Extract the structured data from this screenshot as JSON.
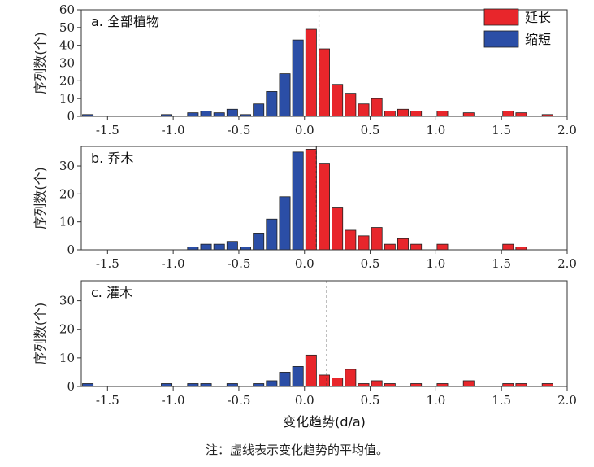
{
  "figure": {
    "note": "注：虚线表示变化趋势的平均值。",
    "xlabel": "变化趋势(d/a)",
    "ylabel": "序列数(个)",
    "legend": [
      {
        "label": "延长",
        "color": "#e8262b"
      },
      {
        "label": "缩短",
        "color": "#2b4ea6"
      }
    ]
  },
  "chart_data": [
    {
      "type": "bar",
      "title": "a. 全部植物",
      "xlabel": "",
      "ylabel": "序列数(个)",
      "xlim": [
        -1.7,
        2.0
      ],
      "ylim": [
        0,
        60
      ],
      "xticks": [
        "-1.5",
        "-1.0",
        "-0.5",
        "0.0",
        "0.5",
        "1.0",
        "1.5",
        "2.0"
      ],
      "yticks": [
        "0",
        "10",
        "20",
        "30",
        "40",
        "50",
        "60"
      ],
      "mean_line_x": 0.11,
      "legend_placement": "top-right",
      "series": [
        {
          "name": "缩短",
          "color": "#2b4ea6",
          "x": [
            -1.65,
            -1.05,
            -0.85,
            -0.75,
            -0.65,
            -0.55,
            -0.45,
            -0.35,
            -0.25,
            -0.15,
            -0.05
          ],
          "values": [
            1,
            1,
            2,
            3,
            2,
            4,
            1,
            7,
            14,
            24,
            43
          ]
        },
        {
          "name": "延长",
          "color": "#e8262b",
          "x": [
            0.05,
            0.15,
            0.25,
            0.35,
            0.45,
            0.55,
            0.65,
            0.75,
            0.85,
            1.05,
            1.25,
            1.55,
            1.65,
            1.85
          ],
          "values": [
            49,
            38,
            18,
            13,
            7,
            10,
            3,
            4,
            3,
            3,
            2,
            3,
            2,
            1
          ]
        }
      ]
    },
    {
      "type": "bar",
      "title": "b. 乔木",
      "xlabel": "",
      "ylabel": "序列数(个)",
      "xlim": [
        -1.7,
        2.0
      ],
      "ylim": [
        0,
        37
      ],
      "xticks": [
        "-1.5",
        "-1.0",
        "-0.5",
        "0.0",
        "0.5",
        "1.0",
        "1.5",
        "2.0"
      ],
      "yticks": [
        "0",
        "10",
        "20",
        "30"
      ],
      "mean_line_x": 0.09,
      "series": [
        {
          "name": "缩短",
          "color": "#2b4ea6",
          "x": [
            -0.85,
            -0.75,
            -0.65,
            -0.55,
            -0.45,
            -0.35,
            -0.25,
            -0.15,
            -0.05
          ],
          "values": [
            1,
            2,
            2,
            3,
            1,
            6,
            11,
            19,
            35
          ]
        },
        {
          "name": "延长",
          "color": "#e8262b",
          "x": [
            0.05,
            0.15,
            0.25,
            0.35,
            0.45,
            0.55,
            0.65,
            0.75,
            0.85,
            1.05,
            1.55,
            1.65
          ],
          "values": [
            36,
            31,
            15,
            7,
            5,
            8,
            2,
            4,
            2,
            2,
            2,
            1
          ]
        }
      ]
    },
    {
      "type": "bar",
      "title": "c. 灌木",
      "xlabel": "变化趋势(d/a)",
      "ylabel": "序列数(个)",
      "xlim": [
        -1.7,
        2.0
      ],
      "ylim": [
        0,
        37
      ],
      "xticks": [
        "-1.5",
        "-1.0",
        "-0.5",
        "0.0",
        "0.5",
        "1.0",
        "1.5",
        "2.0"
      ],
      "yticks": [
        "0",
        "10",
        "20",
        "30"
      ],
      "mean_line_x": 0.17,
      "series": [
        {
          "name": "缩短",
          "color": "#2b4ea6",
          "x": [
            -1.65,
            -1.05,
            -0.85,
            -0.75,
            -0.55,
            -0.35,
            -0.25,
            -0.15,
            -0.05
          ],
          "values": [
            1,
            1,
            1,
            1,
            1,
            1,
            2,
            5,
            7
          ]
        },
        {
          "name": "延长",
          "color": "#e8262b",
          "x": [
            0.05,
            0.15,
            0.25,
            0.35,
            0.45,
            0.55,
            0.65,
            0.85,
            1.05,
            1.25,
            1.55,
            1.65,
            1.85
          ],
          "values": [
            11,
            4,
            3,
            6,
            1,
            2,
            1,
            1,
            1,
            2,
            1,
            1,
            1
          ]
        }
      ]
    }
  ]
}
